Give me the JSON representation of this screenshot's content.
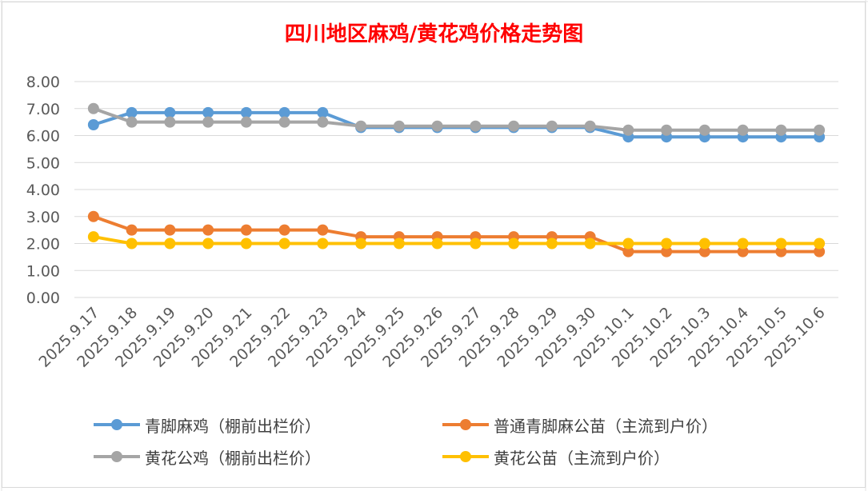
{
  "chart_data": {
    "type": "line",
    "title": "四川地区麻鸡/黄花鸡价格走势图",
    "xlabel": "",
    "ylabel": "",
    "ylim": [
      0,
      8
    ],
    "yticks": [
      "0.00",
      "1.00",
      "2.00",
      "3.00",
      "4.00",
      "5.00",
      "6.00",
      "7.00",
      "8.00"
    ],
    "grid": true,
    "legend_position": "bottom",
    "categories": [
      "2025.9.17",
      "2025.9.18",
      "2025.9.19",
      "2025.9.20",
      "2025.9.21",
      "2025.9.22",
      "2025.9.23",
      "2025.9.24",
      "2025.9.25",
      "2025.9.26",
      "2025.9.27",
      "2025.9.28",
      "2025.9.29",
      "2025.9.30",
      "2025.10.1",
      "2025.10.2",
      "2025.10.3",
      "2025.10.4",
      "2025.10.5",
      "2025.10.6"
    ],
    "series": [
      {
        "name": "青脚麻鸡（棚前出栏价）",
        "color": "#5b9bd5",
        "values": [
          6.4,
          6.85,
          6.85,
          6.85,
          6.85,
          6.85,
          6.85,
          6.3,
          6.3,
          6.3,
          6.3,
          6.3,
          6.3,
          6.3,
          5.95,
          5.95,
          5.95,
          5.95,
          5.95,
          5.95
        ]
      },
      {
        "name": "普通青脚麻公苗（主流到户价）",
        "color": "#ed7d31",
        "values": [
          3.0,
          2.5,
          2.5,
          2.5,
          2.5,
          2.5,
          2.5,
          2.25,
          2.25,
          2.25,
          2.25,
          2.25,
          2.25,
          2.25,
          1.7,
          1.7,
          1.7,
          1.7,
          1.7,
          1.7
        ]
      },
      {
        "name": "黄花公鸡（棚前出栏价）",
        "color": "#a5a5a5",
        "values": [
          7.0,
          6.5,
          6.5,
          6.5,
          6.5,
          6.5,
          6.5,
          6.35,
          6.35,
          6.35,
          6.35,
          6.35,
          6.35,
          6.35,
          6.2,
          6.2,
          6.2,
          6.2,
          6.2,
          6.2
        ]
      },
      {
        "name": "黄花公苗（主流到户价）",
        "color": "#ffc000",
        "values": [
          2.25,
          2.0,
          2.0,
          2.0,
          2.0,
          2.0,
          2.0,
          2.0,
          2.0,
          2.0,
          2.0,
          2.0,
          2.0,
          2.0,
          2.0,
          2.0,
          2.0,
          2.0,
          2.0,
          2.0
        ]
      }
    ]
  }
}
